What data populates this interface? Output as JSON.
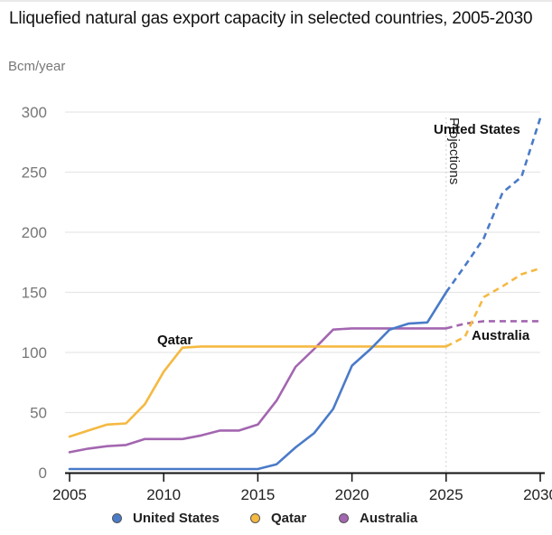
{
  "chart_data": {
    "type": "line",
    "title": "Lliquefied natural gas export capacity in selected countries, 2005-2030",
    "ylabel": "Bcm/year",
    "xlabel": "",
    "xlim": [
      2005,
      2030
    ],
    "ylim": [
      0,
      300
    ],
    "x_ticks": [
      "2005",
      "2010",
      "2015",
      "2020",
      "2025",
      "2030"
    ],
    "y_ticks": [
      "0",
      "50",
      "100",
      "150",
      "200",
      "250",
      "300"
    ],
    "grid": true,
    "projection_start": 2025,
    "projection_label": "Projections",
    "x": [
      2005,
      2006,
      2007,
      2008,
      2009,
      2010,
      2011,
      2012,
      2013,
      2014,
      2015,
      2016,
      2017,
      2018,
      2019,
      2020,
      2021,
      2022,
      2023,
      2024,
      2025,
      2026,
      2027,
      2028,
      2029,
      2030
    ],
    "series": [
      {
        "name": "United States",
        "color": "#4a7bc8",
        "label": "United States",
        "values": [
          3,
          3,
          3,
          3,
          3,
          3,
          3,
          3,
          3,
          3,
          3,
          7,
          21,
          33,
          53,
          89,
          103,
          119,
          124,
          125,
          150,
          172,
          195,
          233,
          246,
          295
        ]
      },
      {
        "name": "Qatar",
        "color": "#f5b942",
        "label": "Qatar",
        "values": [
          30,
          35,
          40,
          41,
          57,
          84,
          104,
          105,
          105,
          105,
          105,
          105,
          105,
          105,
          105,
          105,
          105,
          105,
          105,
          105,
          105,
          113,
          146,
          155,
          165,
          170
        ]
      },
      {
        "name": "Australia",
        "color": "#a366b0",
        "label": "Australia",
        "values": [
          17,
          20,
          22,
          23,
          28,
          28,
          28,
          31,
          35,
          35,
          40,
          60,
          88,
          103,
          119,
          120,
          120,
          120,
          120,
          120,
          120,
          124,
          126,
          126,
          126,
          126
        ]
      }
    ],
    "legend": [
      "United States",
      "Qatar",
      "Australia"
    ],
    "legend_position": "bottom-center"
  }
}
